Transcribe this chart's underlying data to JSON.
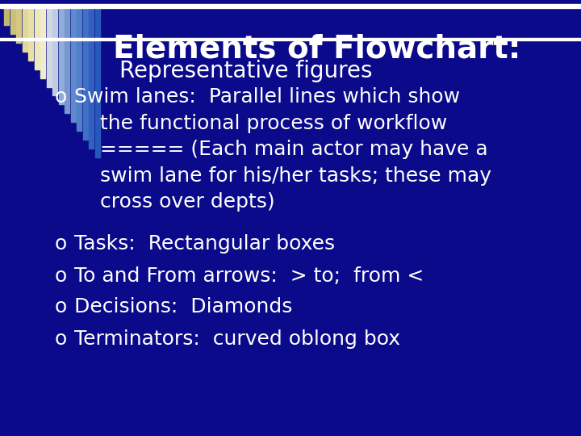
{
  "background_color": "#0a0a8a",
  "title_line1": "Elements of Flowchart:",
  "title_line2": "Representative figures",
  "title_color": "#ffffff",
  "title_fontsize": 28,
  "subtitle_fontsize": 20,
  "bullet_color": "#ffffff",
  "bullet_fontsize": 18,
  "bullet_char": "o",
  "top_bar_color": "#ffffff",
  "bottom_bar_color": "#ffffff",
  "bullet_texts": [
    "Swim lanes:  Parallel lines which show\n    the functional process of workflow\n    ===== (Each main actor may have a\n    swim lane for his/her tasks; these may\n    cross over depts)",
    "Tasks:  Rectangular boxes",
    "To and From arrows:  > to;  from <",
    "Decisions:  Diamonds",
    "Terminators:  curved oblong box"
  ],
  "stripe_colors_left": [
    "#e8e0a0",
    "#dfd898",
    "#d8d090",
    "#d0c888"
  ],
  "stripe_colors_mid": [
    "#c8c880",
    "#c0c090",
    "#b8b8a0",
    "#c0c8b0",
    "#c8d0c0",
    "#b0c8d0",
    "#98c0d0",
    "#80b0d0"
  ],
  "stripe_colors_right": [
    "#6090c8",
    "#4878c0",
    "#3060c0",
    "#2858d0",
    "#2060e0",
    "#1858e0"
  ]
}
